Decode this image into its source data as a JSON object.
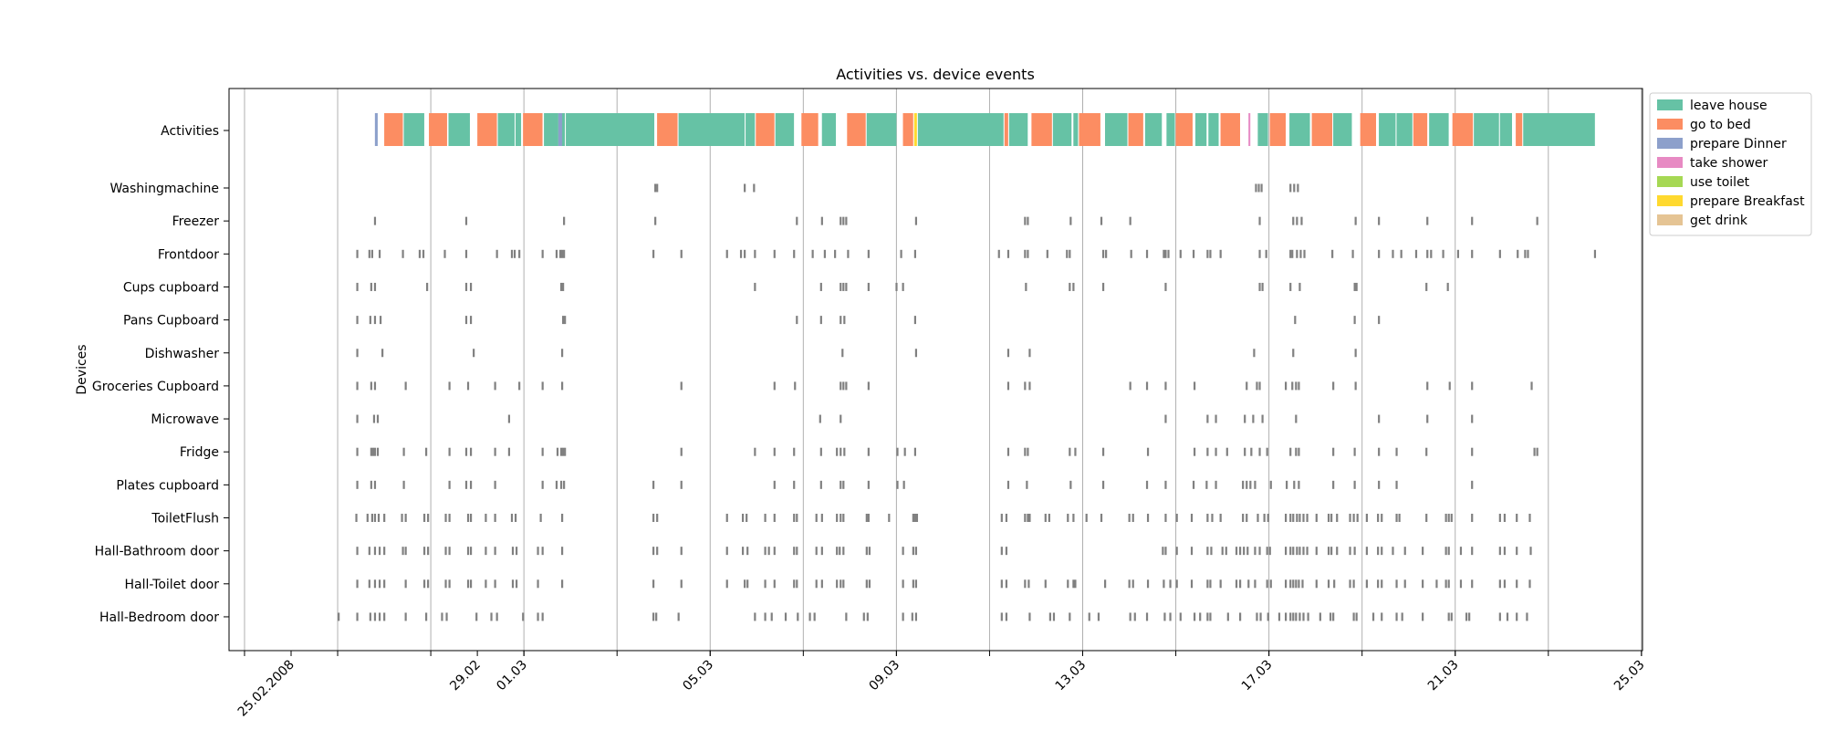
{
  "chart_data": {
    "type": "timeline",
    "title": "Activities vs. device events",
    "ylabel": "Devices",
    "xlim": [
      "2008-02-24",
      "2008-03-25"
    ],
    "grid": {
      "x": true,
      "y": false
    },
    "legend_position": "right-top",
    "x_tick_labels": [
      {
        "date": "2008-02-25",
        "label": "25.02.2008"
      },
      {
        "date": "2008-02-29",
        "label": "29.02"
      },
      {
        "date": "2008-03-01",
        "label": "01.03"
      },
      {
        "date": "2008-03-05",
        "label": "05.03"
      },
      {
        "date": "2008-03-09",
        "label": "09.03"
      },
      {
        "date": "2008-03-13",
        "label": "13.03"
      },
      {
        "date": "2008-03-17",
        "label": "17.03"
      },
      {
        "date": "2008-03-21",
        "label": "21.03"
      },
      {
        "date": "2008-03-25",
        "label": "25.03"
      }
    ],
    "rows": [
      "Activities",
      "Washingmachine",
      "Freezer",
      "Frontdoor",
      "Cups cupboard",
      "Pans Cupboard",
      "Dishwasher",
      "Groceries Cupboard",
      "Microwave",
      "Fridge",
      "Plates cupboard",
      "ToiletFlush",
      "Hall-Bathroom door",
      "Hall-Toilet door",
      "Hall-Bedroom door"
    ],
    "legend": [
      {
        "name": "leave house",
        "color": "#66c2a5"
      },
      {
        "name": "go to bed",
        "color": "#fc8d62"
      },
      {
        "name": "prepare Dinner",
        "color": "#8da0cb"
      },
      {
        "name": "take shower",
        "color": "#e78ac3"
      },
      {
        "name": "use toilet",
        "color": "#a6d854"
      },
      {
        "name": "prepare Breakfast",
        "color": "#ffd92f"
      },
      {
        "name": "get drink",
        "color": "#e5c494"
      }
    ],
    "event_color": "#808080",
    "activities": [
      {
        "activity": "prepare Dinner",
        "start": 26.8,
        "end": 26.86
      },
      {
        "activity": "go to bed",
        "start": 27.0,
        "end": 27.4
      },
      {
        "activity": "leave house",
        "start": 27.42,
        "end": 27.86
      },
      {
        "activity": "go to bed",
        "start": 27.96,
        "end": 28.35
      },
      {
        "activity": "leave house",
        "start": 28.38,
        "end": 28.84
      },
      {
        "activity": "go to bed",
        "start": 29.0,
        "end": 29.42
      },
      {
        "activity": "leave house",
        "start": 29.44,
        "end": 29.8
      },
      {
        "activity": "leave house",
        "start": 29.82,
        "end": 29.94
      },
      {
        "activity": "go to bed",
        "start": 29.98,
        "end": 30.4
      },
      {
        "activity": "leave house",
        "start": 30.43,
        "end": 30.74
      },
      {
        "activity": "prepare Dinner",
        "start": 30.74,
        "end": 30.82
      },
      {
        "activity": "leave house",
        "start": 30.82,
        "end": 30.88
      },
      {
        "activity": "leave house",
        "start": 30.9,
        "end": 32.8
      },
      {
        "activity": "go to bed",
        "start": 32.86,
        "end": 33.3
      },
      {
        "activity": "leave house",
        "start": 33.32,
        "end": 34.74
      },
      {
        "activity": "leave house",
        "start": 34.76,
        "end": 34.96
      },
      {
        "activity": "go to bed",
        "start": 34.98,
        "end": 35.38
      },
      {
        "activity": "leave house",
        "start": 35.4,
        "end": 35.8
      },
      {
        "activity": "go to bed",
        "start": 35.96,
        "end": 36.32
      },
      {
        "activity": "leave house",
        "start": 36.4,
        "end": 36.7
      },
      {
        "activity": "go to bed",
        "start": 36.94,
        "end": 37.34
      },
      {
        "activity": "leave house",
        "start": 37.36,
        "end": 38.0
      },
      {
        "activity": "go to bed",
        "start": 38.14,
        "end": 38.36
      },
      {
        "activity": "prepare Breakfast",
        "start": 38.38,
        "end": 38.44
      },
      {
        "activity": "leave house",
        "start": 38.46,
        "end": 40.3
      },
      {
        "activity": "go to bed",
        "start": 40.32,
        "end": 40.4
      },
      {
        "activity": "leave house",
        "start": 40.42,
        "end": 40.82
      },
      {
        "activity": "go to bed",
        "start": 40.9,
        "end": 41.34
      },
      {
        "activity": "leave house",
        "start": 41.36,
        "end": 41.76
      },
      {
        "activity": "leave house",
        "start": 41.8,
        "end": 41.9
      },
      {
        "activity": "go to bed",
        "start": 41.92,
        "end": 42.38
      },
      {
        "activity": "leave house",
        "start": 42.48,
        "end": 42.96
      },
      {
        "activity": "go to bed",
        "start": 42.98,
        "end": 43.3
      },
      {
        "activity": "leave house",
        "start": 43.34,
        "end": 43.7
      },
      {
        "activity": "leave house",
        "start": 43.8,
        "end": 43.98
      },
      {
        "activity": "go to bed",
        "start": 44.0,
        "end": 44.36
      },
      {
        "activity": "leave house",
        "start": 44.42,
        "end": 44.66
      },
      {
        "activity": "leave house",
        "start": 44.7,
        "end": 44.92
      },
      {
        "activity": "go to bed",
        "start": 44.96,
        "end": 45.38
      },
      {
        "activity": "take shower",
        "start": 45.56,
        "end": 45.6
      },
      {
        "activity": "leave house",
        "start": 45.76,
        "end": 45.98
      },
      {
        "activity": "go to bed",
        "start": 46.02,
        "end": 46.36
      },
      {
        "activity": "leave house",
        "start": 46.44,
        "end": 46.88
      },
      {
        "activity": "go to bed",
        "start": 46.92,
        "end": 47.36
      },
      {
        "activity": "leave house",
        "start": 47.38,
        "end": 47.78
      },
      {
        "activity": "go to bed",
        "start": 47.96,
        "end": 48.3
      },
      {
        "activity": "leave house",
        "start": 48.36,
        "end": 48.72
      },
      {
        "activity": "leave house",
        "start": 48.74,
        "end": 49.08
      },
      {
        "activity": "go to bed",
        "start": 49.1,
        "end": 49.4
      },
      {
        "activity": "leave house",
        "start": 49.44,
        "end": 49.86
      },
      {
        "activity": "go to bed",
        "start": 49.94,
        "end": 50.38
      },
      {
        "activity": "leave house",
        "start": 50.4,
        "end": 50.94
      },
      {
        "activity": "leave house",
        "start": 50.96,
        "end": 51.22
      },
      {
        "activity": "go to bed",
        "start": 51.3,
        "end": 51.44
      },
      {
        "activity": "leave house",
        "start": 51.46,
        "end": 53.0
      }
    ],
    "events": {
      "Washingmachine": [
        32.82,
        32.86,
        34.74,
        34.94,
        45.72,
        45.78,
        45.84,
        46.46,
        46.54,
        46.62
      ],
      "Freezer": [
        26.8,
        28.76,
        30.86,
        32.82,
        35.86,
        36.4,
        36.8,
        36.86,
        36.92,
        38.42,
        40.76,
        40.82,
        41.74,
        42.4,
        43.02,
        45.8,
        46.52,
        46.6,
        46.7,
        47.86,
        48.36,
        49.4,
        50.36,
        51.76
      ],
      "Frontdoor": [
        26.42,
        26.68,
        26.74,
        26.9,
        27.4,
        27.76,
        27.84,
        28.3,
        28.76,
        29.42,
        29.74,
        29.8,
        29.9,
        30.4,
        30.7,
        30.78,
        30.82,
        30.86,
        32.78,
        33.38,
        34.36,
        34.66,
        34.74,
        34.96,
        35.38,
        35.8,
        36.2,
        36.46,
        36.68,
        36.96,
        37.4,
        38.1,
        38.4,
        40.2,
        40.4,
        40.76,
        40.82,
        41.24,
        41.66,
        41.72,
        42.44,
        42.5,
        43.04,
        43.38,
        43.74,
        43.78,
        43.84,
        44.1,
        44.38,
        44.68,
        44.74,
        44.96,
        45.8,
        45.94,
        46.46,
        46.5,
        46.6,
        46.68,
        46.76,
        47.36,
        47.8,
        48.36,
        48.66,
        48.84,
        49.16,
        49.4,
        49.48,
        49.74,
        50.06,
        50.36,
        50.96,
        51.34,
        51.5,
        51.56,
        53.0
      ],
      "Cups cupboard": [
        26.42,
        26.72,
        26.8,
        27.92,
        28.76,
        28.86,
        30.8,
        30.84,
        34.96,
        36.38,
        36.8,
        36.86,
        36.92,
        37.4,
        38.0,
        38.14,
        40.78,
        41.72,
        41.8,
        42.44,
        43.78,
        45.8,
        45.86,
        46.46,
        46.66,
        47.84,
        47.88,
        49.38,
        49.84
      ],
      "Pans Cupboard": [
        26.42,
        26.7,
        26.8,
        26.92,
        28.76,
        28.86,
        30.84,
        30.88,
        35.86,
        36.38,
        36.8,
        36.88,
        38.4,
        46.56,
        47.84,
        48.36
      ],
      "Dishwasher": [
        26.42,
        26.96,
        28.92,
        30.82,
        36.84,
        38.42,
        40.4,
        40.86,
        45.68,
        46.52,
        47.86
      ],
      "Groceries Cupboard": [
        26.42,
        26.72,
        26.8,
        27.46,
        28.4,
        28.8,
        29.38,
        29.9,
        30.4,
        30.82,
        33.38,
        35.38,
        35.82,
        36.8,
        36.86,
        36.92,
        37.4,
        40.4,
        40.76,
        40.86,
        43.02,
        43.38,
        43.78,
        44.4,
        45.52,
        45.74,
        45.8,
        46.36,
        46.5,
        46.58,
        46.64,
        47.38,
        47.86,
        49.4,
        49.88,
        50.36,
        51.64
      ],
      "Microwave": [
        26.42,
        26.78,
        26.86,
        29.68,
        36.36,
        36.8,
        43.78,
        44.68,
        44.86,
        45.48,
        45.66,
        45.86,
        46.58,
        48.36,
        49.4,
        50.36
      ],
      "Fridge": [
        26.42,
        26.72,
        26.76,
        26.8,
        26.86,
        27.42,
        27.9,
        28.4,
        28.76,
        28.86,
        29.38,
        29.68,
        30.4,
        30.72,
        30.8,
        30.84,
        30.88,
        33.38,
        34.96,
        35.38,
        35.8,
        36.38,
        36.72,
        36.8,
        36.88,
        37.4,
        38.02,
        38.18,
        38.4,
        40.4,
        40.76,
        40.82,
        41.72,
        41.84,
        42.44,
        43.4,
        44.4,
        44.68,
        44.86,
        45.1,
        45.48,
        45.62,
        45.8,
        45.96,
        46.46,
        46.58,
        46.64,
        47.38,
        47.84,
        48.36,
        48.74,
        49.38,
        50.36,
        51.7,
        51.76
      ],
      "Plates cupboard": [
        26.42,
        26.72,
        26.8,
        27.42,
        28.4,
        28.76,
        28.86,
        29.38,
        30.4,
        30.7,
        30.8,
        30.86,
        32.78,
        33.38,
        35.38,
        35.8,
        36.38,
        36.8,
        36.86,
        37.4,
        38.02,
        38.16,
        40.4,
        40.8,
        41.74,
        42.44,
        43.38,
        43.78,
        44.38,
        44.66,
        44.86,
        45.44,
        45.52,
        45.6,
        45.7,
        46.04,
        46.38,
        46.54,
        46.64,
        47.38,
        47.84,
        48.36,
        48.74,
        50.36
      ],
      "ToiletFlush": [
        26.4,
        26.64,
        26.74,
        26.8,
        26.88,
        27.0,
        27.38,
        27.46,
        27.86,
        27.94,
        28.32,
        28.4,
        28.8,
        28.86,
        29.18,
        29.38,
        29.74,
        29.82,
        30.36,
        30.82,
        32.78,
        32.86,
        34.36,
        34.7,
        34.78,
        35.18,
        35.38,
        35.8,
        35.86,
        36.28,
        36.4,
        36.72,
        36.8,
        36.86,
        37.36,
        37.4,
        37.84,
        38.36,
        38.4,
        38.44,
        40.26,
        40.36,
        40.76,
        40.82,
        40.86,
        41.2,
        41.28,
        41.68,
        41.8,
        42.08,
        42.4,
        43.0,
        43.08,
        43.4,
        43.78,
        44.02,
        44.34,
        44.68,
        44.78,
        44.96,
        45.44,
        45.52,
        45.76,
        45.9,
        45.98,
        46.36,
        46.46,
        46.52,
        46.6,
        46.66,
        46.74,
        46.82,
        47.02,
        47.28,
        47.34,
        47.46,
        47.74,
        47.82,
        47.9,
        48.1,
        48.34,
        48.42,
        48.74,
        48.8,
        49.38,
        49.8,
        49.86,
        49.92,
        50.36,
        50.96,
        51.06,
        51.32,
        51.6
      ],
      "Hall-Bathroom door": [
        26.42,
        26.68,
        26.8,
        26.9,
        27.0,
        27.4,
        27.46,
        27.86,
        27.94,
        28.32,
        28.4,
        28.8,
        28.86,
        29.18,
        29.38,
        29.76,
        29.84,
        30.3,
        30.4,
        30.82,
        32.78,
        32.86,
        33.38,
        34.36,
        34.7,
        34.8,
        35.18,
        35.26,
        35.38,
        35.8,
        35.86,
        36.28,
        36.4,
        36.72,
        36.78,
        36.86,
        37.36,
        37.42,
        38.14,
        38.36,
        38.42,
        40.26,
        40.36,
        43.72,
        43.78,
        44.02,
        44.34,
        44.68,
        44.76,
        45.0,
        45.08,
        45.3,
        45.38,
        45.46,
        45.54,
        45.7,
        45.8,
        45.96,
        46.02,
        46.36,
        46.46,
        46.52,
        46.6,
        46.66,
        46.74,
        46.82,
        47.02,
        47.28,
        47.34,
        47.46,
        47.74,
        47.84,
        48.1,
        48.34,
        48.42,
        48.66,
        48.92,
        49.3,
        49.8,
        49.86,
        50.12,
        50.36,
        50.96,
        51.06,
        51.32,
        51.62
      ],
      "Hall-Toilet door": [
        26.42,
        26.68,
        26.8,
        26.9,
        27.0,
        27.46,
        27.86,
        27.94,
        28.32,
        28.4,
        28.8,
        28.86,
        29.18,
        29.38,
        29.76,
        29.84,
        30.3,
        30.82,
        32.78,
        33.38,
        34.36,
        34.74,
        34.8,
        35.18,
        35.38,
        35.8,
        35.86,
        36.28,
        36.4,
        36.72,
        36.8,
        36.86,
        37.36,
        37.42,
        38.14,
        38.36,
        38.42,
        40.26,
        40.36,
        40.76,
        40.84,
        41.2,
        41.68,
        41.8,
        41.84,
        42.48,
        43.0,
        43.08,
        43.4,
        43.74,
        43.88,
        44.02,
        44.34,
        44.68,
        44.74,
        44.96,
        45.3,
        45.38,
        45.56,
        45.7,
        45.96,
        46.04,
        46.36,
        46.46,
        46.52,
        46.58,
        46.64,
        46.72,
        47.02,
        47.28,
        47.4,
        47.74,
        47.82,
        48.1,
        48.34,
        48.42,
        48.74,
        48.92,
        49.3,
        49.6,
        49.8,
        49.86,
        50.12,
        50.36,
        50.96,
        51.06,
        51.32,
        51.6
      ],
      "Hall-Bedroom door": [
        26.02,
        26.42,
        26.7,
        26.8,
        26.9,
        27.0,
        27.46,
        27.9,
        28.24,
        28.34,
        28.98,
        29.3,
        29.42,
        29.98,
        30.3,
        30.4,
        32.78,
        32.84,
        33.32,
        34.96,
        35.18,
        35.32,
        35.62,
        35.88,
        36.14,
        36.24,
        36.92,
        37.3,
        37.38,
        38.14,
        38.34,
        38.42,
        40.26,
        40.36,
        40.86,
        41.3,
        41.38,
        41.72,
        42.14,
        42.34,
        43.02,
        43.12,
        43.38,
        43.76,
        43.88,
        44.1,
        44.4,
        44.52,
        44.68,
        44.74,
        45.12,
        45.38,
        45.74,
        45.82,
        45.98,
        46.22,
        46.36,
        46.46,
        46.52,
        46.58,
        46.66,
        46.74,
        46.84,
        47.1,
        47.32,
        47.38,
        47.82,
        47.88,
        48.24,
        48.42,
        48.74,
        48.86,
        49.3,
        49.86,
        49.92,
        50.24,
        50.3,
        50.96,
        51.12,
        51.32,
        51.54
      ]
    }
  }
}
